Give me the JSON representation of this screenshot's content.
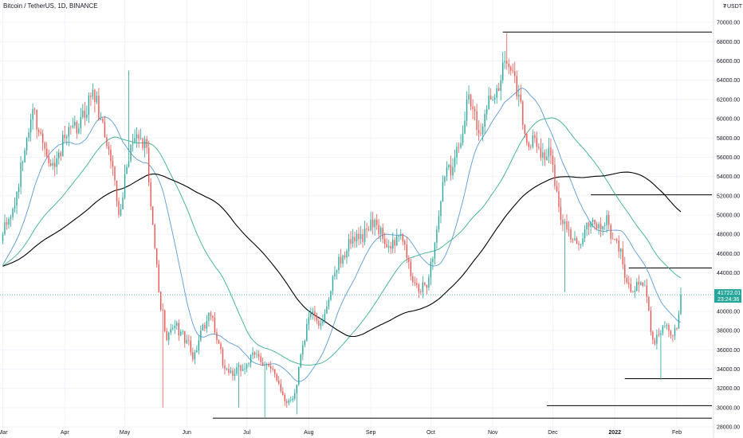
{
  "header": {
    "title": "Bitcoin / TetherUS, 1D, BINANCE",
    "currency": "USDT",
    "currency_prefix": "₮"
  },
  "price_badge": {
    "price": "41722.01",
    "countdown": "23:24:36",
    "color": "#26a69a"
  },
  "colors": {
    "up": "#26a69a",
    "down": "#ef5350",
    "ma_fast": "#5b9bd5",
    "ma_mid": "#3ab08a",
    "ma_slow": "#000000",
    "levels": "#000000"
  },
  "chart_data": {
    "type": "candlestick",
    "title": "Bitcoin / TetherUS, 1D, BINANCE",
    "ylim": [
      28000,
      72000
    ],
    "y_ticks": [
      "28000.00",
      "30000.00",
      "32000.00",
      "34000.00",
      "36000.00",
      "38000.00",
      "40000.00",
      "42000.00",
      "44000.00",
      "46000.00",
      "48000.00",
      "50000.00",
      "52000.00",
      "54000.00",
      "56000.00",
      "58000.00",
      "60000.00",
      "62000.00",
      "64000.00",
      "66000.00",
      "68000.00",
      "70000.00"
    ],
    "x_ticks": [
      {
        "label": "Mar",
        "day": 0
      },
      {
        "label": "Apr",
        "day": 31
      },
      {
        "label": "May",
        "day": 61
      },
      {
        "label": "Jun",
        "day": 92
      },
      {
        "label": "Jul",
        "day": 122
      },
      {
        "label": "Aug",
        "day": 153
      },
      {
        "label": "Sep",
        "day": 184
      },
      {
        "label": "Oct",
        "day": 214
      },
      {
        "label": "Nov",
        "day": 245
      },
      {
        "label": "Dec",
        "day": 275
      },
      {
        "label": "2022",
        "day": 306,
        "bold": true
      },
      {
        "label": "Feb",
        "day": 337
      }
    ],
    "day_range": [
      0,
      355
    ],
    "anchors": [
      [
        0,
        48000
      ],
      [
        6,
        51000
      ],
      [
        12,
        58000
      ],
      [
        15,
        61000
      ],
      [
        20,
        57500
      ],
      [
        26,
        55000
      ],
      [
        31,
        58000
      ],
      [
        38,
        59000
      ],
      [
        45,
        63000
      ],
      [
        49,
        60000
      ],
      [
        55,
        55000
      ],
      [
        58,
        50000
      ],
      [
        62,
        55000
      ],
      [
        66,
        58000
      ],
      [
        72,
        57000
      ],
      [
        75,
        49000
      ],
      [
        78,
        42000
      ],
      [
        82,
        37000
      ],
      [
        86,
        38500
      ],
      [
        92,
        37000
      ],
      [
        95,
        35000
      ],
      [
        99,
        38000
      ],
      [
        104,
        39500
      ],
      [
        107,
        37000
      ],
      [
        111,
        34000
      ],
      [
        116,
        33500
      ],
      [
        122,
        34500
      ],
      [
        126,
        35500
      ],
      [
        132,
        34500
      ],
      [
        138,
        32500
      ],
      [
        142,
        30500
      ],
      [
        146,
        31500
      ],
      [
        150,
        36500
      ],
      [
        154,
        39800
      ],
      [
        158,
        38500
      ],
      [
        162,
        40500
      ],
      [
        166,
        44000
      ],
      [
        170,
        45800
      ],
      [
        174,
        47000
      ],
      [
        178,
        47500
      ],
      [
        182,
        48500
      ],
      [
        186,
        49500
      ],
      [
        190,
        47500
      ],
      [
        194,
        46500
      ],
      [
        199,
        48000
      ],
      [
        202,
        45500
      ],
      [
        205,
        43000
      ],
      [
        209,
        42000
      ],
      [
        213,
        43500
      ],
      [
        217,
        48500
      ],
      [
        221,
        54000
      ],
      [
        225,
        55000
      ],
      [
        228,
        57000
      ],
      [
        232,
        62000
      ],
      [
        235,
        61000
      ],
      [
        238,
        58500
      ],
      [
        242,
        61000
      ],
      [
        245,
        62000
      ],
      [
        249,
        64000
      ],
      [
        251,
        66000
      ],
      [
        254,
        65000
      ],
      [
        258,
        62500
      ],
      [
        262,
        57500
      ],
      [
        266,
        58000
      ],
      [
        270,
        56500
      ],
      [
        273,
        57000
      ],
      [
        276,
        53000
      ],
      [
        279,
        49500
      ],
      [
        283,
        48500
      ],
      [
        287,
        47000
      ],
      [
        291,
        48500
      ],
      [
        295,
        49500
      ],
      [
        299,
        48500
      ],
      [
        302,
        50000
      ],
      [
        305,
        47500
      ],
      [
        309,
        46500
      ],
      [
        312,
        43000
      ],
      [
        315,
        42000
      ],
      [
        319,
        43000
      ],
      [
        322,
        41500
      ],
      [
        325,
        37000
      ],
      [
        328,
        37500
      ],
      [
        331,
        38500
      ],
      [
        334,
        37500
      ],
      [
        337,
        38200
      ],
      [
        339,
        41722
      ]
    ],
    "anomalies": [
      {
        "day": 63,
        "high": 65000
      },
      {
        "day": 80,
        "low": 30000
      },
      {
        "day": 118,
        "low": 30000
      },
      {
        "day": 131,
        "low": 29000
      },
      {
        "day": 147,
        "low": 29300
      },
      {
        "day": 252,
        "high": 68900
      },
      {
        "day": 281,
        "low": 42000
      },
      {
        "day": 329,
        "low": 32900
      }
    ],
    "horizontal_levels": [
      {
        "price": 69000,
        "from_day": 250,
        "to_day": 355
      },
      {
        "price": 52100,
        "from_day": 294,
        "to_day": 355
      },
      {
        "price": 44500,
        "from_day": 313,
        "to_day": 355
      },
      {
        "price": 33000,
        "from_day": 311,
        "to_day": 355
      },
      {
        "price": 30200,
        "from_day": 272,
        "to_day": 355
      },
      {
        "price": 28900,
        "from_day": 105,
        "to_day": 355
      }
    ],
    "moving_averages": [
      {
        "key": "ma_fast",
        "period": 20
      },
      {
        "key": "ma_mid",
        "period": 50
      },
      {
        "key": "ma_slow",
        "period": 100
      }
    ],
    "last_price": 41722.01
  }
}
